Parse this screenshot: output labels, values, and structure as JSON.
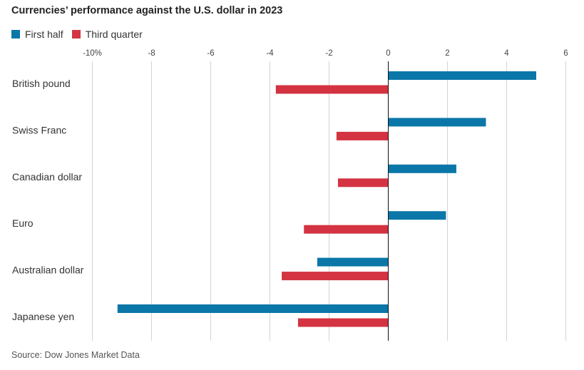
{
  "title": "Currencies’ performance against the U.S. dollar in 2023",
  "source": "Source: Dow Jones Market Data",
  "chart_data": {
    "type": "bar",
    "orientation": "horizontal",
    "title": "Currencies’ performance against the U.S. dollar in 2023",
    "xlim": [
      -10,
      6
    ],
    "ticks": [
      -10,
      -8,
      -6,
      -4,
      -2,
      0,
      2,
      4,
      6
    ],
    "tick_labels": [
      "-10%",
      "-8",
      "-6",
      "-4",
      "-2",
      "0",
      "2",
      "4",
      "6"
    ],
    "grid": true,
    "legend_position": "top-left",
    "categories": [
      "British pound",
      "Swiss Franc",
      "Canadian dollar",
      "Euro",
      "Australian dollar",
      "Japanese yen"
    ],
    "series": [
      {
        "name": "First half",
        "color": "#0a77a8",
        "values": [
          5.0,
          3.3,
          2.3,
          1.95,
          -2.4,
          -9.15
        ]
      },
      {
        "name": "Third quarter",
        "color": "#d43341",
        "values": [
          -3.8,
          -1.75,
          -1.7,
          -2.85,
          -3.6,
          -3.05
        ]
      }
    ]
  }
}
